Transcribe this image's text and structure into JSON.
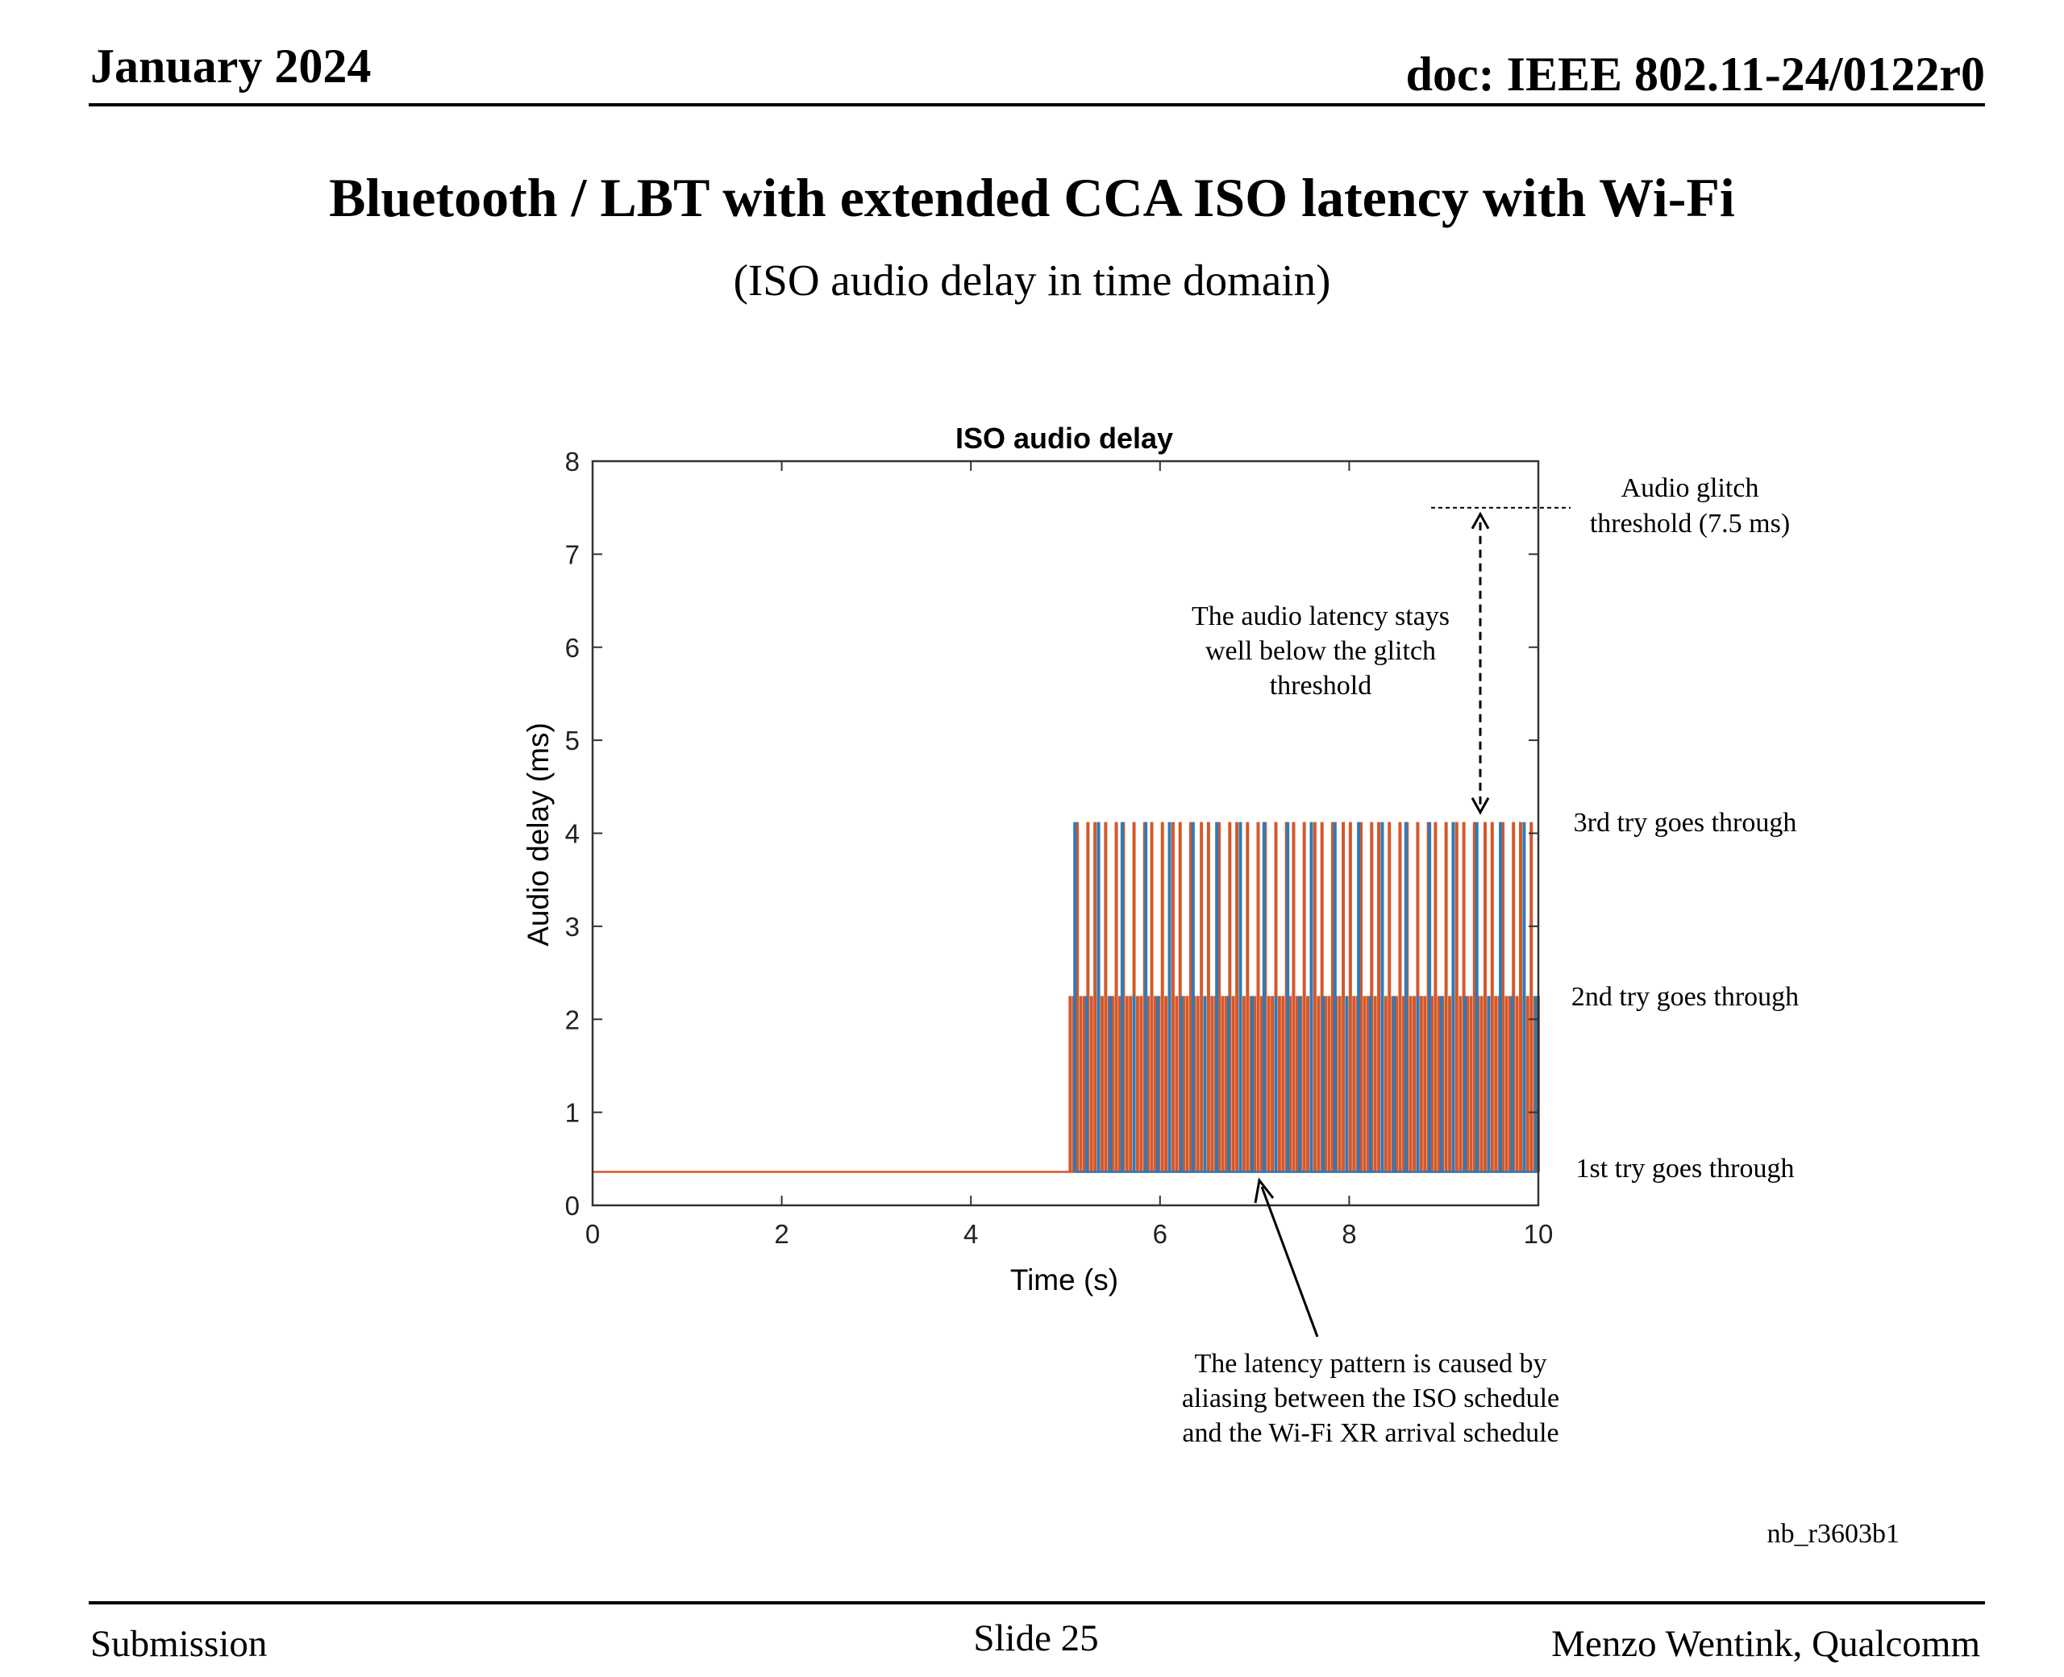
{
  "header": {
    "date": "January 2024",
    "doc": "doc: IEEE 802.11-24/0122r0"
  },
  "slide": {
    "title": "Bluetooth / LBT with extended CCA ISO latency with Wi-Fi",
    "subtitle": "(ISO audio delay in time domain)"
  },
  "footer": {
    "left": "Submission",
    "center": "Slide 25",
    "right": "Menzo Wentink, Qualcomm"
  },
  "figure_id": "nb_r3603b1",
  "chart_data": {
    "type": "bar",
    "title": "ISO audio delay",
    "xlabel": "Time (s)",
    "ylabel": "Audio delay (ms)",
    "xlim": [
      0,
      10
    ],
    "ylim": [
      0,
      8
    ],
    "xticks": [
      "0",
      "2",
      "4",
      "6",
      "8",
      "10"
    ],
    "yticks": [
      "0",
      "1",
      "2",
      "3",
      "4",
      "5",
      "6",
      "7",
      "8"
    ],
    "grid": false,
    "colors": {
      "blue": "#2e7ab8",
      "orange": "#d4582a"
    },
    "series": [
      {
        "color": "orange",
        "segments": [
          {
            "from_s": 0.0,
            "to_s": 5.05,
            "delay_ms": 0.36
          }
        ],
        "spikes": {
          "from_s": 5.05,
          "to_s": 10.0,
          "period_s": 0.0375,
          "base_ms": 0.36,
          "levels_ms": [
            2.25,
            2.25,
            4.12,
            2.25,
            2.25,
            4.12,
            2.25,
            4.12
          ]
        }
      },
      {
        "color": "blue",
        "spikes": {
          "from_s": 5.1,
          "to_s": 10.0,
          "period_s": 0.125,
          "base_ms": 0.36,
          "levels_ms": [
            4.12,
            2.25
          ]
        }
      }
    ],
    "annotations": {
      "threshold_line_ms": 7.5,
      "threshold_label": [
        "Audio glitch",
        "threshold (7.5 ms)"
      ],
      "stays_below": [
        "The audio latency stays",
        "well below the glitch",
        "threshold"
      ],
      "third_try": "3rd try goes through",
      "second_try": "2nd try goes through",
      "first_try": "1st try goes through",
      "pattern_note": [
        "The latency pattern is caused by",
        "aliasing between the ISO schedule",
        "and the Wi-Fi XR arrival schedule"
      ]
    }
  }
}
